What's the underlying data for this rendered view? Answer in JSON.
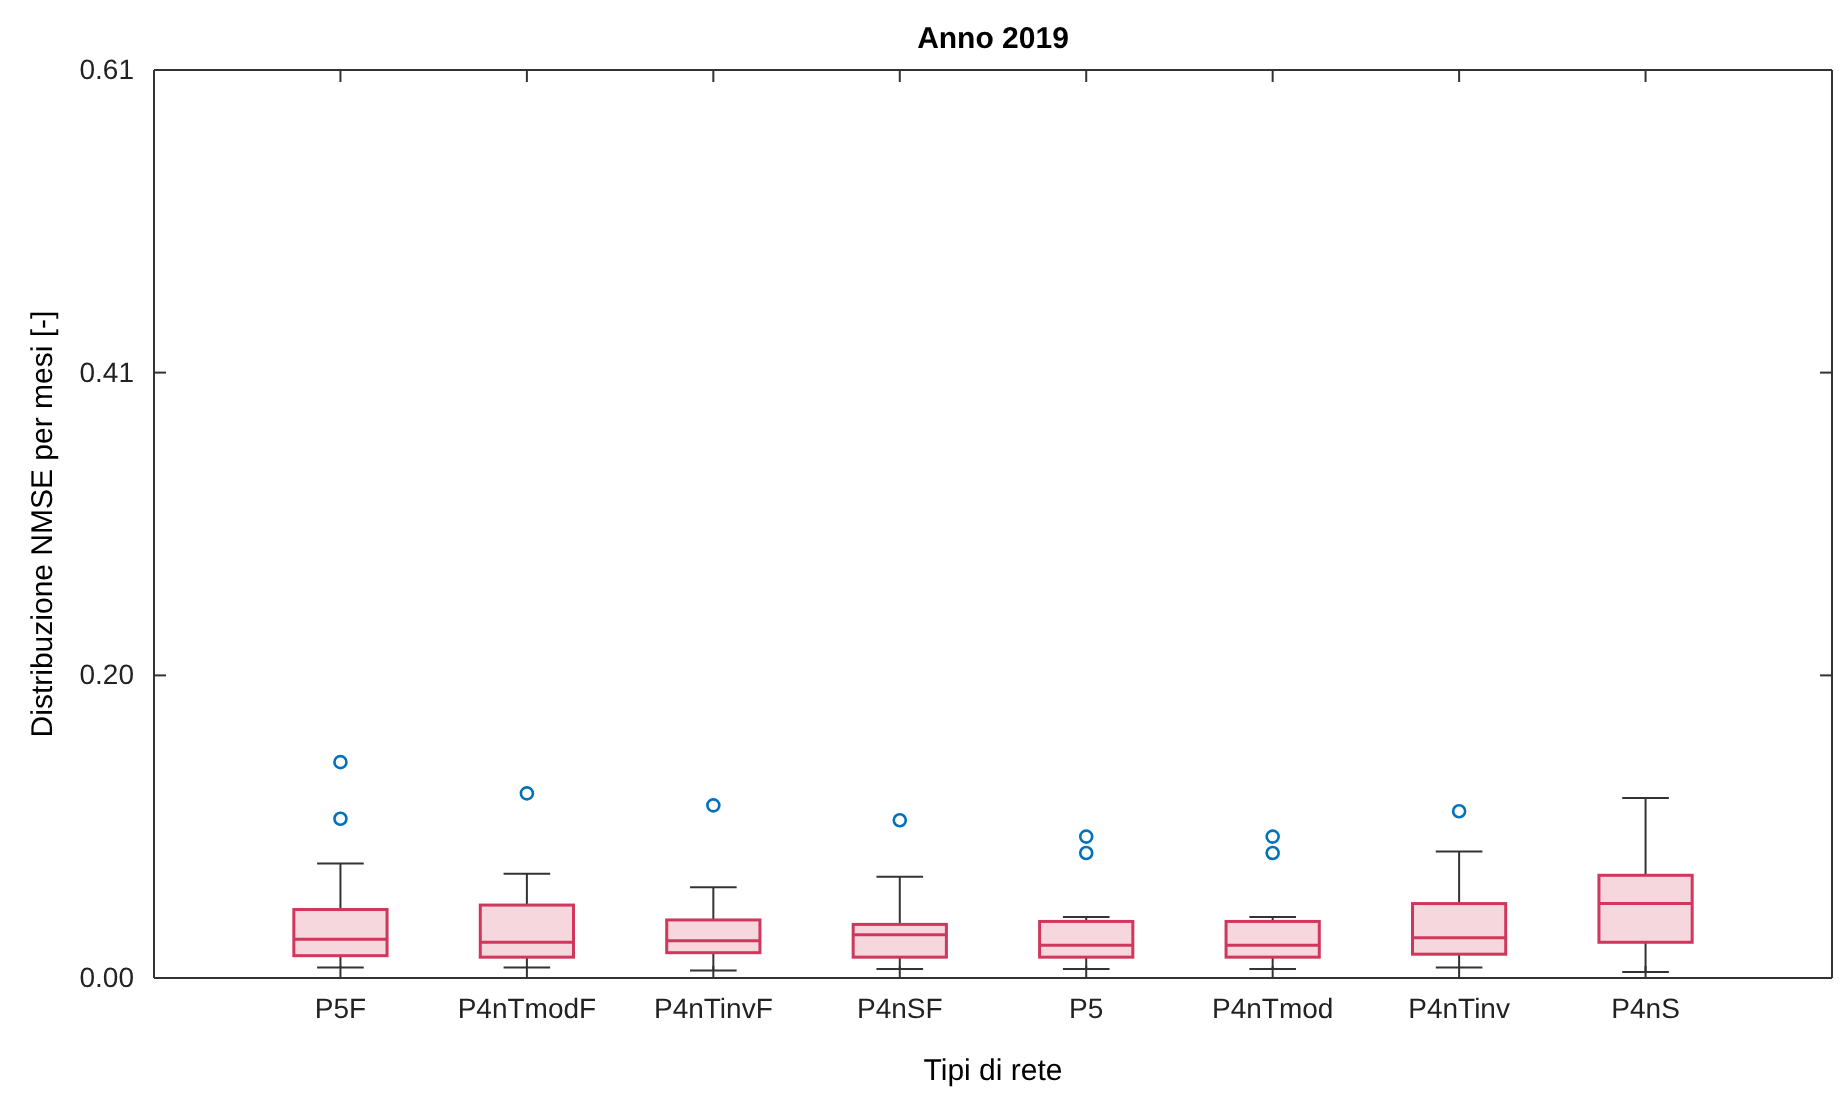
{
  "chart_data": {
    "type": "box",
    "title": "Anno 2019",
    "xlabel": "Tipi di rete",
    "ylabel": "Distribuzione NMSE per mesi [-]",
    "categories": [
      "P5F",
      "P4nTmodF",
      "P4nTinvF",
      "P4nSF",
      "P5",
      "P4nTmod",
      "P4nTinv",
      "P4nS"
    ],
    "color": "#d0375c",
    "boxes": [
      {
        "low": 0.007,
        "q1": 0.015,
        "median": 0.026,
        "q3": 0.046,
        "high": 0.077,
        "outliers": [
          0.145,
          0.107
        ]
      },
      {
        "low": 0.007,
        "q1": 0.014,
        "median": 0.024,
        "q3": 0.049,
        "high": 0.07,
        "outliers": [
          0.124
        ]
      },
      {
        "low": 0.005,
        "q1": 0.017,
        "median": 0.025,
        "q3": 0.039,
        "high": 0.061,
        "outliers": [
          0.116
        ]
      },
      {
        "low": 0.006,
        "q1": 0.014,
        "median": 0.029,
        "q3": 0.036,
        "high": 0.068,
        "outliers": [
          0.106
        ]
      },
      {
        "low": 0.006,
        "q1": 0.014,
        "median": 0.022,
        "q3": 0.038,
        "high": 0.041,
        "outliers": [
          0.095,
          0.084
        ]
      },
      {
        "low": 0.006,
        "q1": 0.014,
        "median": 0.022,
        "q3": 0.038,
        "high": 0.041,
        "outliers": [
          0.095,
          0.084
        ]
      },
      {
        "low": 0.007,
        "q1": 0.016,
        "median": 0.027,
        "q3": 0.05,
        "high": 0.085,
        "outliers": [
          0.112
        ]
      },
      {
        "low": 0.004,
        "q1": 0.024,
        "median": 0.05,
        "q3": 0.069,
        "high": 0.121
      }
    ],
    "ylim": [
      0,
      0.61
    ],
    "yticks": [
      {
        "value": 0,
        "label": "0.00"
      },
      {
        "value": 0.2033,
        "label": "0.20"
      },
      {
        "value": 0.4067,
        "label": "0.41"
      },
      {
        "value": 0.61,
        "label": "0.61"
      }
    ],
    "grid": false
  }
}
